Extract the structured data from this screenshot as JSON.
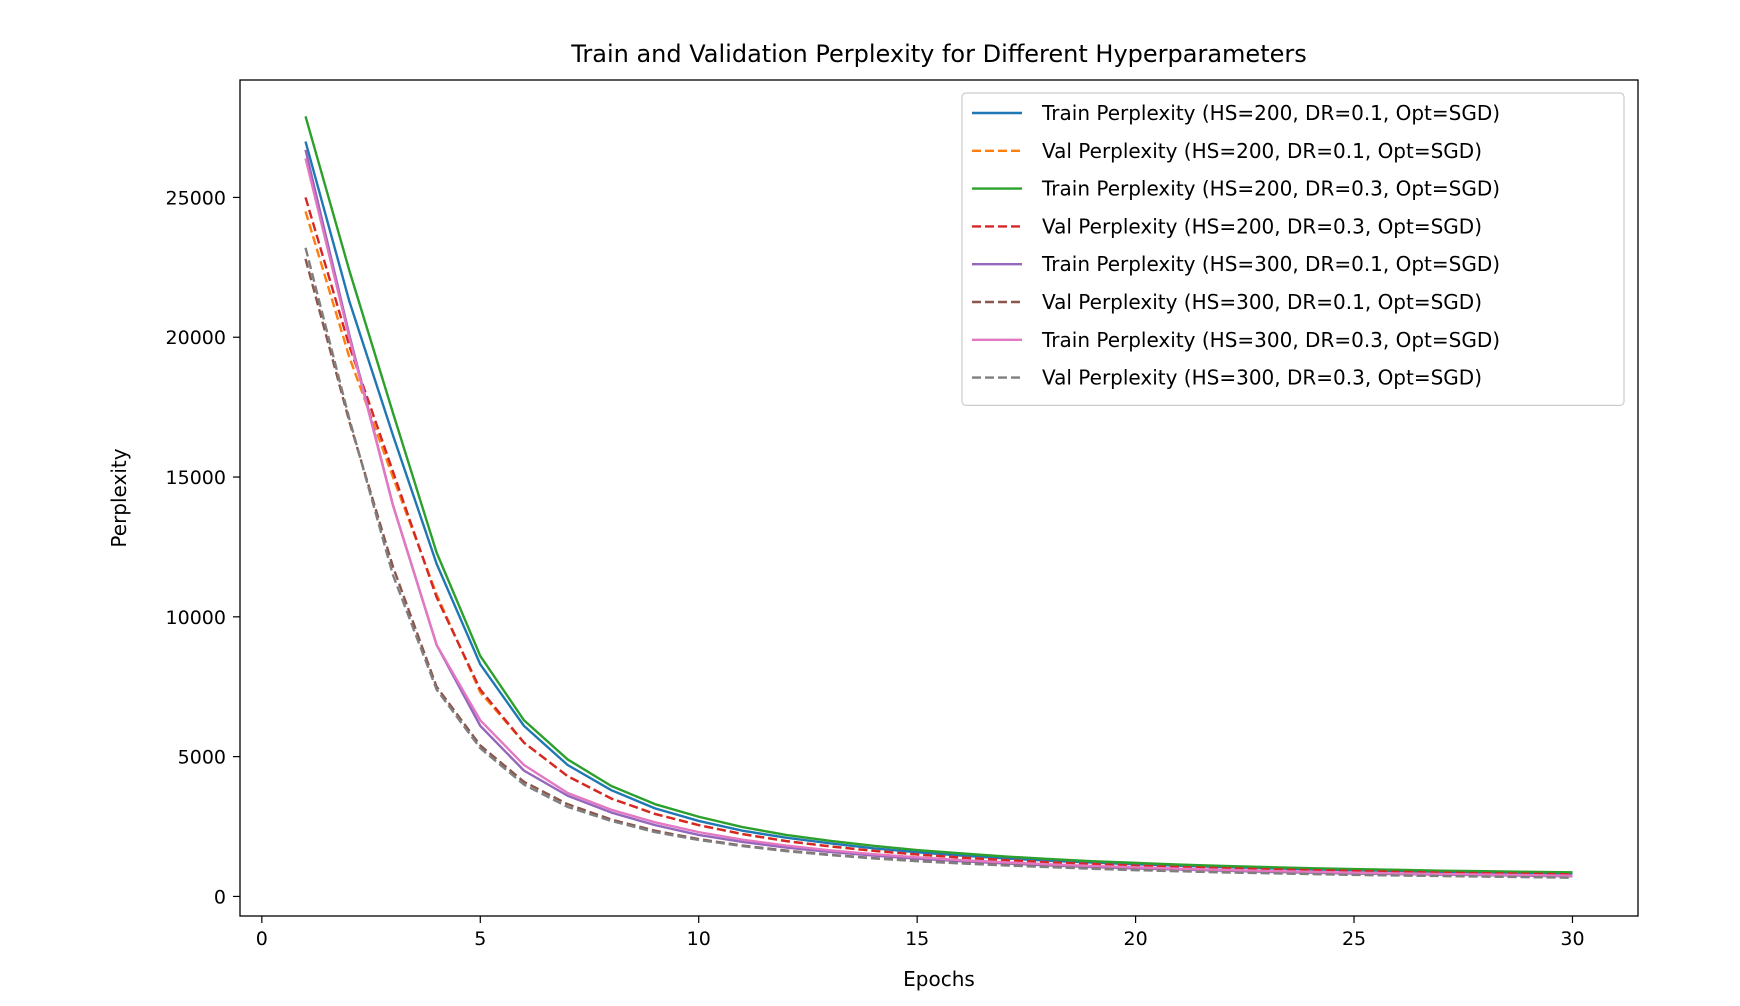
{
  "chart_data": {
    "type": "line",
    "title": "Train and Validation Perplexity for Different Hyperparameters",
    "xlabel": "Epochs",
    "ylabel": "Perplexity",
    "xlim": [
      -0.5,
      31.5
    ],
    "ylim": [
      -700,
      29200
    ],
    "xticks": [
      0,
      5,
      10,
      15,
      20,
      25,
      30
    ],
    "yticks": [
      0,
      5000,
      10000,
      15000,
      20000,
      25000
    ],
    "grid": false,
    "legend_position": "top-right",
    "x": [
      1,
      2,
      3,
      4,
      5,
      6,
      7,
      8,
      9,
      10,
      11,
      12,
      13,
      14,
      15,
      16,
      17,
      18,
      19,
      20,
      21,
      22,
      23,
      24,
      25,
      26,
      27,
      28,
      29,
      30
    ],
    "series": [
      {
        "name": "Train Perplexity (HS=200, DR=0.1, Opt=SGD)",
        "color": "#1f77b4",
        "dash": "solid",
        "values": [
          27000,
          21300,
          16500,
          11900,
          8300,
          6100,
          4700,
          3800,
          3150,
          2700,
          2350,
          2100,
          1900,
          1720,
          1580,
          1460,
          1360,
          1280,
          1210,
          1150,
          1100,
          1050,
          1010,
          970,
          940,
          910,
          880,
          860,
          840,
          820
        ]
      },
      {
        "name": "Val Perplexity (HS=200, DR=0.1, Opt=SGD)",
        "color": "#ff7f0e",
        "dash": "dashed",
        "values": [
          24500,
          19300,
          15000,
          10800,
          7300,
          5500,
          4300,
          3500,
          2950,
          2550,
          2230,
          1980,
          1790,
          1630,
          1500,
          1390,
          1300,
          1220,
          1160,
          1100,
          1050,
          1010,
          970,
          940,
          910,
          880,
          850,
          830,
          810,
          790
        ]
      },
      {
        "name": "Train Perplexity (HS=200, DR=0.3, Opt=SGD)",
        "color": "#2ca02c",
        "dash": "solid",
        "values": [
          27900,
          22400,
          17300,
          12300,
          8600,
          6300,
          4900,
          3950,
          3300,
          2850,
          2480,
          2200,
          1990,
          1810,
          1660,
          1540,
          1430,
          1340,
          1260,
          1200,
          1140,
          1090,
          1050,
          1010,
          980,
          950,
          920,
          900,
          880,
          860
        ]
      },
      {
        "name": "Val Perplexity (HS=200, DR=0.3, Opt=SGD)",
        "color": "#d62728",
        "dash": "dashed",
        "values": [
          25000,
          19700,
          15200,
          10700,
          7400,
          5500,
          4300,
          3500,
          2950,
          2550,
          2230,
          1980,
          1790,
          1630,
          1500,
          1390,
          1300,
          1220,
          1160,
          1100,
          1050,
          1010,
          970,
          940,
          910,
          880,
          850,
          830,
          810,
          790
        ]
      },
      {
        "name": "Train Perplexity (HS=300, DR=0.1, Opt=SGD)",
        "color": "#9467bd",
        "dash": "solid",
        "values": [
          26700,
          20100,
          14000,
          9000,
          6100,
          4500,
          3600,
          3000,
          2550,
          2200,
          1950,
          1750,
          1590,
          1460,
          1350,
          1260,
          1180,
          1110,
          1050,
          1000,
          960,
          920,
          880,
          850,
          820,
          800,
          780,
          760,
          740,
          720
        ]
      },
      {
        "name": "Val Perplexity (HS=300, DR=0.1, Opt=SGD)",
        "color": "#8c564b",
        "dash": "dashed",
        "values": [
          22800,
          17000,
          11800,
          7500,
          5400,
          4100,
          3300,
          2750,
          2350,
          2050,
          1820,
          1640,
          1490,
          1370,
          1270,
          1190,
          1120,
          1060,
          1000,
          950,
          910,
          870,
          840,
          810,
          780,
          760,
          740,
          720,
          700,
          680
        ]
      },
      {
        "name": "Train Perplexity (HS=300, DR=0.3, Opt=SGD)",
        "color": "#e377c2",
        "dash": "solid",
        "values": [
          26400,
          20000,
          14000,
          9000,
          6300,
          4700,
          3700,
          3100,
          2650,
          2300,
          2030,
          1820,
          1650,
          1510,
          1400,
          1300,
          1220,
          1150,
          1090,
          1040,
          990,
          950,
          910,
          880,
          850,
          820,
          800,
          780,
          760,
          740
        ]
      },
      {
        "name": "Val Perplexity (HS=300, DR=0.3, Opt=SGD)",
        "color": "#7f7f7f",
        "dash": "dashed",
        "values": [
          23200,
          17100,
          11500,
          7400,
          5300,
          4000,
          3200,
          2700,
          2300,
          2020,
          1800,
          1620,
          1480,
          1360,
          1260,
          1180,
          1110,
          1050,
          990,
          940,
          900,
          860,
          830,
          800,
          770,
          750,
          730,
          710,
          690,
          670
        ]
      }
    ]
  }
}
